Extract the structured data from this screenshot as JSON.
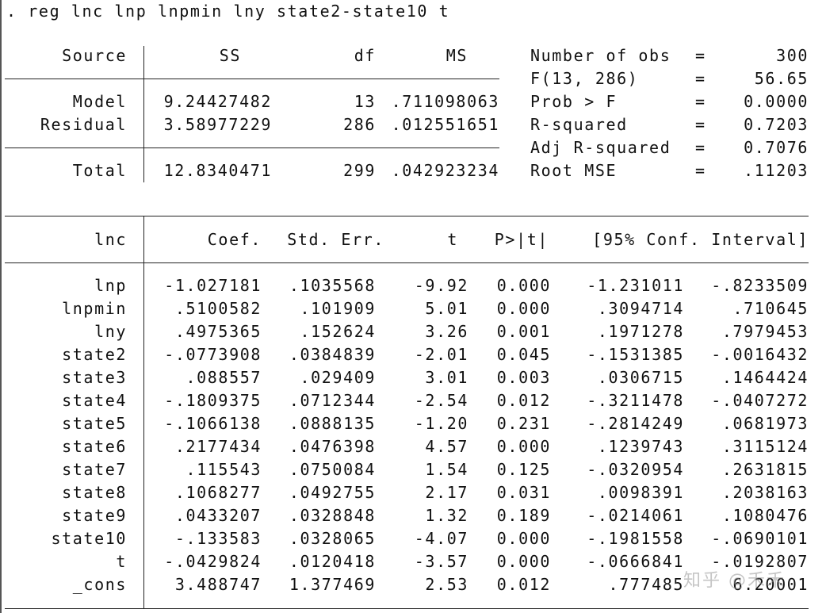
{
  "command": ". reg lnc lnp lnpmin lny state2-state10 t",
  "anova": {
    "headers": {
      "source": "Source",
      "ss": "SS",
      "df": "df",
      "ms": "MS"
    },
    "rows": [
      {
        "source": "Model",
        "ss": "9.24427482",
        "df": "13",
        "ms": ".711098063"
      },
      {
        "source": "Residual",
        "ss": "3.58977229",
        "df": "286",
        "ms": ".012551651"
      }
    ],
    "total": {
      "source": "Total",
      "ss": "12.8340471",
      "df": "299",
      "ms": ".042923234"
    }
  },
  "stats": [
    {
      "label": "Number of obs",
      "eq": "=",
      "value": "300"
    },
    {
      "label": "F(13, 286)",
      "eq": "=",
      "value": "56.65"
    },
    {
      "label": "Prob > F",
      "eq": "=",
      "value": "0.0000"
    },
    {
      "label": "R-squared",
      "eq": "=",
      "value": "0.7203"
    },
    {
      "label": "Adj R-squared",
      "eq": "=",
      "value": "0.7076"
    },
    {
      "label": "Root MSE",
      "eq": "=",
      "value": ".11203"
    }
  ],
  "coef_table": {
    "headers": {
      "var": "lnc",
      "coef": "Coef.",
      "se": "Std. Err.",
      "t": "t",
      "p": "P>|t|",
      "ci": "[95% Conf. Interval]"
    },
    "rows": [
      {
        "var": "lnp",
        "coef": "-1.027181",
        "se": ".1035568",
        "t": "-9.92",
        "p": "0.000",
        "lo": "-1.231011",
        "hi": "-.8233509"
      },
      {
        "var": "lnpmin",
        "coef": ".5100582",
        "se": ".101909",
        "t": "5.01",
        "p": "0.000",
        "lo": ".3094714",
        "hi": ".710645"
      },
      {
        "var": "lny",
        "coef": ".4975365",
        "se": ".152624",
        "t": "3.26",
        "p": "0.001",
        "lo": ".1971278",
        "hi": ".7979453"
      },
      {
        "var": "state2",
        "coef": "-.0773908",
        "se": ".0384839",
        "t": "-2.01",
        "p": "0.045",
        "lo": "-.1531385",
        "hi": "-.0016432"
      },
      {
        "var": "state3",
        "coef": ".088557",
        "se": ".029409",
        "t": "3.01",
        "p": "0.003",
        "lo": ".0306715",
        "hi": ".1464424"
      },
      {
        "var": "state4",
        "coef": "-.1809375",
        "se": ".0712344",
        "t": "-2.54",
        "p": "0.012",
        "lo": "-.3211478",
        "hi": "-.0407272"
      },
      {
        "var": "state5",
        "coef": "-.1066138",
        "se": ".0888135",
        "t": "-1.20",
        "p": "0.231",
        "lo": "-.2814249",
        "hi": ".0681973"
      },
      {
        "var": "state6",
        "coef": ".2177434",
        "se": ".0476398",
        "t": "4.57",
        "p": "0.000",
        "lo": ".1239743",
        "hi": ".3115124"
      },
      {
        "var": "state7",
        "coef": ".115543",
        "se": ".0750084",
        "t": "1.54",
        "p": "0.125",
        "lo": "-.0320954",
        "hi": ".2631815"
      },
      {
        "var": "state8",
        "coef": ".1068277",
        "se": ".0492755",
        "t": "2.17",
        "p": "0.031",
        "lo": ".0098391",
        "hi": ".2038163"
      },
      {
        "var": "state9",
        "coef": ".0433207",
        "se": ".0328848",
        "t": "1.32",
        "p": "0.189",
        "lo": "-.0214061",
        "hi": ".1080476"
      },
      {
        "var": "state10",
        "coef": "-.133583",
        "se": ".0328065",
        "t": "-4.07",
        "p": "0.000",
        "lo": "-.1981558",
        "hi": "-.0690101"
      },
      {
        "var": "t",
        "coef": "-.0429824",
        "se": ".0120418",
        "t": "-3.57",
        "p": "0.000",
        "lo": "-.0666841",
        "hi": "-.0192807"
      },
      {
        "var": "_cons",
        "coef": "3.488747",
        "se": "1.377469",
        "t": "2.53",
        "p": "0.012",
        "lo": ".777485",
        "hi": "6.20001"
      }
    ]
  },
  "watermark": "知乎 @禾禾"
}
